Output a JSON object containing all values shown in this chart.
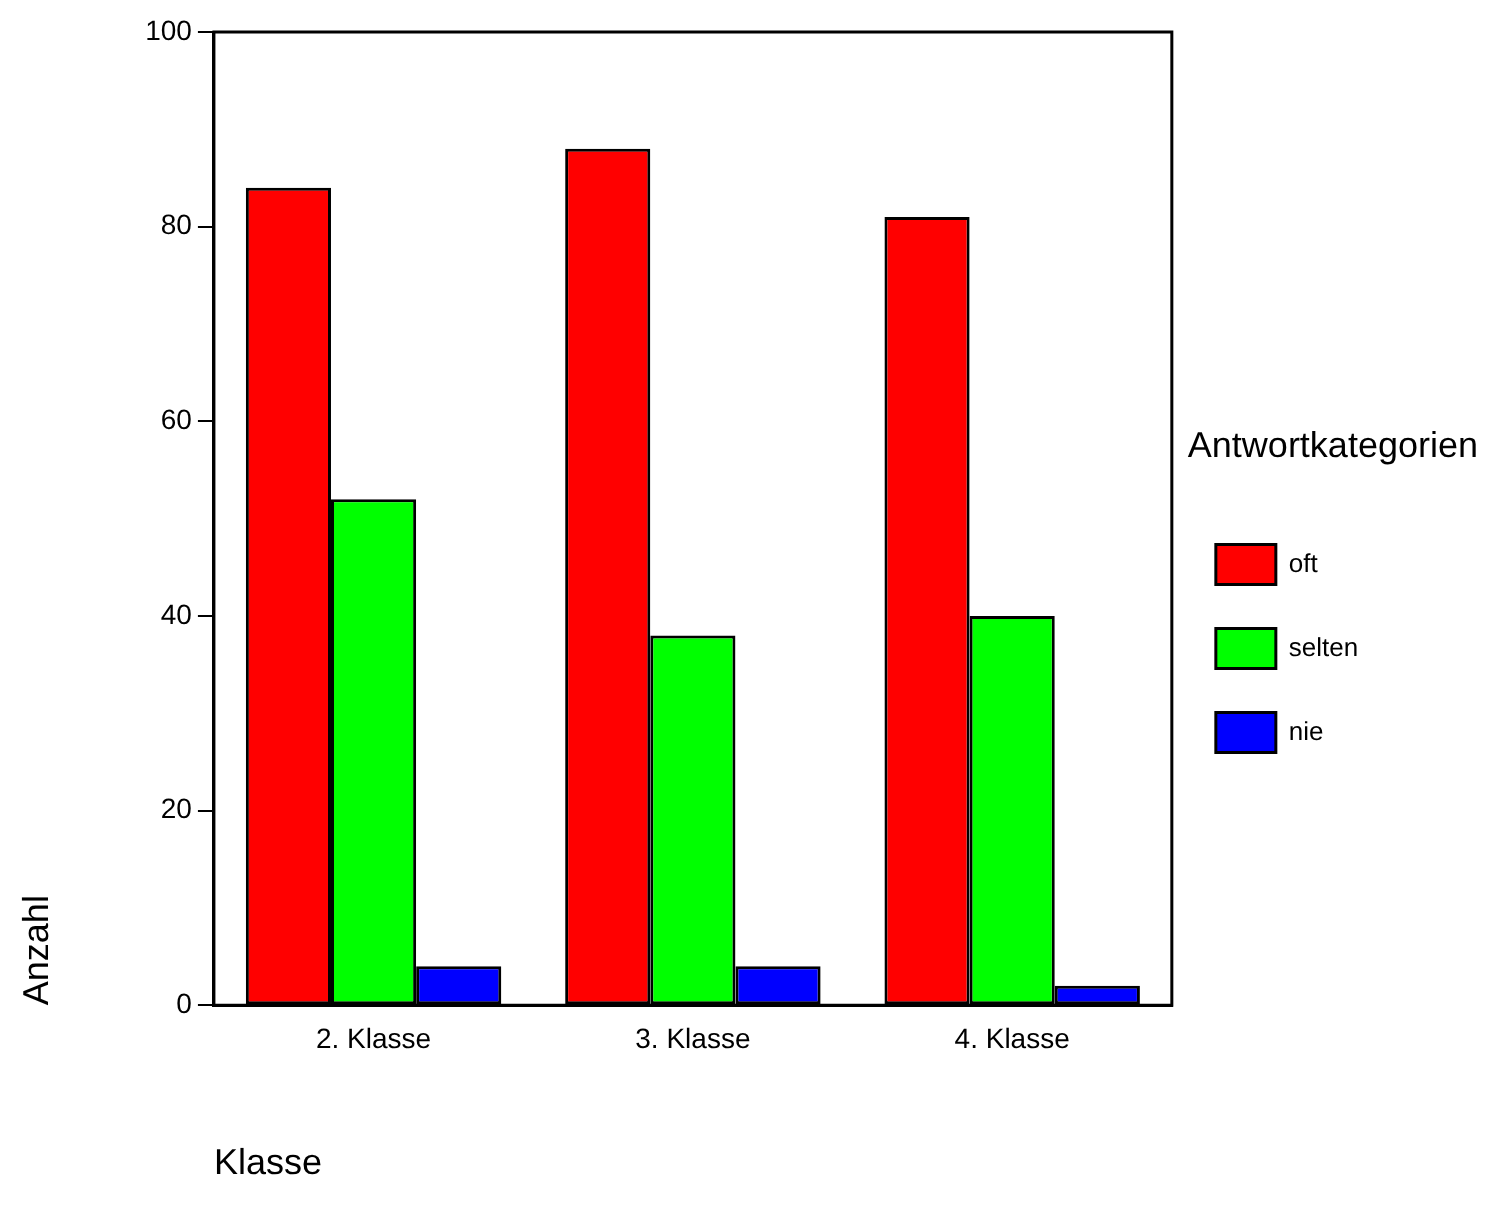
{
  "chart_data": {
    "type": "bar",
    "xlabel": "Klasse",
    "ylabel": "Anzahl",
    "legend_title": "Antwortkategorien",
    "legend": "right",
    "categories": [
      "2. Klasse",
      "3. Klasse",
      "4. Klasse"
    ],
    "series": [
      {
        "name": "oft",
        "color": "#ff0000",
        "values": [
          84,
          88,
          81
        ]
      },
      {
        "name": "selten",
        "color": "#00ff00",
        "values": [
          52,
          38,
          40
        ]
      },
      {
        "name": "nie",
        "color": "#0000ff",
        "values": [
          4,
          4,
          2
        ]
      }
    ],
    "ylim": [
      0,
      100
    ],
    "yticks": [
      0,
      20,
      40,
      60,
      80,
      100
    ],
    "grid": false
  }
}
